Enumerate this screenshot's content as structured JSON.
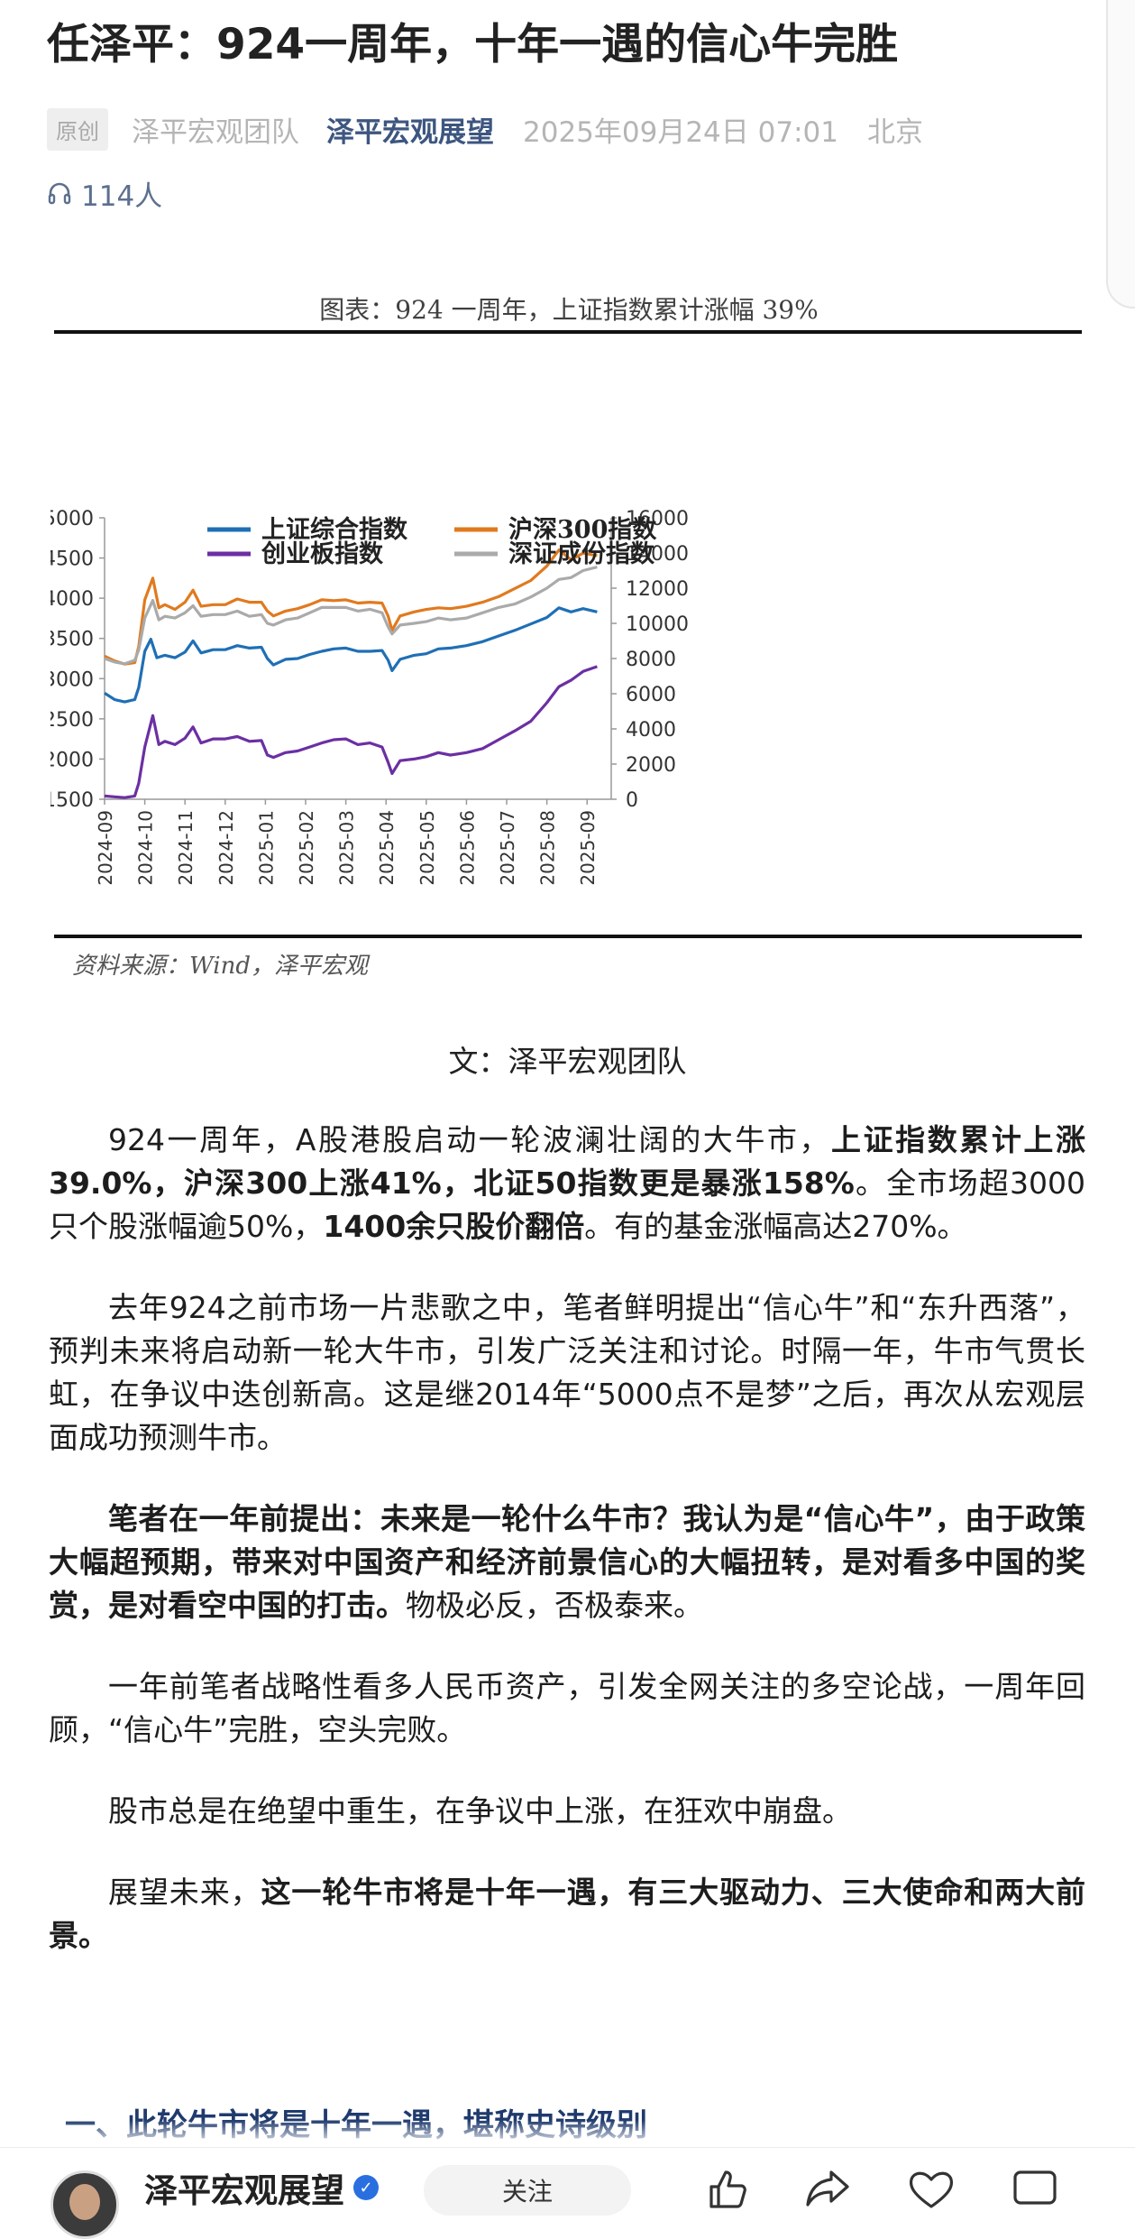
{
  "article": {
    "title": "任泽平：924一周年，十年一遇的信心牛完胜",
    "original_tag": "原创",
    "author_team": "泽平宏观团队",
    "account": "泽平宏观展望",
    "date": "2025年09月24日 07:01",
    "location": "北京",
    "listeners": "114人",
    "byline": "文：泽平宏观团队",
    "section_heading": "一、此轮牛市将是十年一遇，堪称史诗级别"
  },
  "paragraphs": [
    [
      {
        "t": "924一周年，A股港股启动一轮波澜壮阔的大牛市，",
        "b": false
      },
      {
        "t": "上证指数累计上涨39.0%，沪深300上涨41%，北证50指数更是暴涨158%",
        "b": true
      },
      {
        "t": "。全市场超3000只个股涨幅逾50%，",
        "b": false
      },
      {
        "t": "1400余只股价翻倍",
        "b": true
      },
      {
        "t": "。有的基金涨幅高达270%。",
        "b": false
      }
    ],
    [
      {
        "t": "去年924之前市场一片悲歌之中，笔者鲜明提出“信心牛”和“东升西落”，预判未来将启动新一轮大牛市，引发广泛关注和讨论。时隔一年，牛市气贯长虹，在争议中迭创新高。这是继2014年“5000点不是梦”之后，再次从宏观层面成功预测牛市。",
        "b": false
      }
    ],
    [
      {
        "t": "笔者在一年前提出：未来是一轮什么牛市？我认为是“信心牛”，由于政策大幅超预期，带来对中国资产和经济前景信心的大幅扭转，是对看多中国的奖赏，是对看空中国的打击。",
        "b": true
      },
      {
        "t": "物极必反，否极泰来。",
        "b": false
      }
    ],
    [
      {
        "t": "一年前笔者战略性看多人民币资产，引发全网关注的多空论战，一周年回顾，“信心牛”完胜，空头完败。",
        "b": false
      }
    ],
    [
      {
        "t": "股市总是在绝望中重生，在争议中上涨，在狂欢中崩盘。",
        "b": false
      }
    ],
    [
      {
        "t": "展望未来，",
        "b": false
      },
      {
        "t": "这一轮牛市将是十年一遇，有三大驱动力、三大使命和两大前景。",
        "b": true
      }
    ]
  ],
  "bottom_bar": {
    "account_name": "泽平宏观展望",
    "follow_label": "关注"
  },
  "colors": {
    "shanghai": "#1f6fb5",
    "hs300": "#e07a1f",
    "chinext": "#6b2fa3",
    "szse": "#aaaaaa",
    "account_link": "#3d5680",
    "section_heading": "#1f3a6d"
  },
  "chart_data": {
    "type": "line",
    "title": "图表：924 一周年，上证指数累计涨幅 39%",
    "source": "资料来源：Wind，泽平宏观",
    "x_ticks": [
      "2024-09",
      "2024-10",
      "2024-11",
      "2024-12",
      "2025-01",
      "2025-02",
      "2025-03",
      "2025-04",
      "2025-05",
      "2025-06",
      "2025-07",
      "2025-08",
      "2025-09"
    ],
    "x_range": [
      0,
      12.6
    ],
    "ylim_left": [
      1500,
      5000
    ],
    "yticks_left": [
      1500,
      2000,
      2500,
      3000,
      3500,
      4000,
      4500,
      5000
    ],
    "ylim_right": [
      0,
      16000
    ],
    "yticks_right": [
      0,
      2000,
      4000,
      6000,
      8000,
      10000,
      12000,
      14000,
      16000
    ],
    "legend_placement": "top",
    "grid": false,
    "series": [
      {
        "name": "上证综合指数",
        "axis": "left",
        "color": "#1f6fb5",
        "points": [
          [
            0,
            2820
          ],
          [
            0.25,
            2740
          ],
          [
            0.5,
            2710
          ],
          [
            0.75,
            2740
          ],
          [
            0.85,
            2890
          ],
          [
            1.0,
            3340
          ],
          [
            1.15,
            3490
          ],
          [
            1.3,
            3260
          ],
          [
            1.5,
            3290
          ],
          [
            1.75,
            3260
          ],
          [
            2.0,
            3330
          ],
          [
            2.2,
            3470
          ],
          [
            2.4,
            3320
          ],
          [
            2.7,
            3360
          ],
          [
            3.0,
            3360
          ],
          [
            3.3,
            3410
          ],
          [
            3.6,
            3380
          ],
          [
            3.9,
            3390
          ],
          [
            4.05,
            3250
          ],
          [
            4.2,
            3170
          ],
          [
            4.5,
            3240
          ],
          [
            4.8,
            3250
          ],
          [
            5.1,
            3300
          ],
          [
            5.4,
            3340
          ],
          [
            5.7,
            3370
          ],
          [
            6.0,
            3380
          ],
          [
            6.3,
            3340
          ],
          [
            6.6,
            3340
          ],
          [
            6.9,
            3350
          ],
          [
            7.05,
            3230
          ],
          [
            7.15,
            3100
          ],
          [
            7.35,
            3240
          ],
          [
            7.7,
            3290
          ],
          [
            8.0,
            3310
          ],
          [
            8.3,
            3370
          ],
          [
            8.6,
            3380
          ],
          [
            9.0,
            3410
          ],
          [
            9.4,
            3460
          ],
          [
            9.8,
            3530
          ],
          [
            10.2,
            3600
          ],
          [
            10.6,
            3680
          ],
          [
            11.0,
            3760
          ],
          [
            11.3,
            3880
          ],
          [
            11.6,
            3830
          ],
          [
            11.9,
            3870
          ],
          [
            12.25,
            3830
          ]
        ]
      },
      {
        "name": "沪深300指数",
        "axis": "left",
        "color": "#e07a1f",
        "points": [
          [
            0,
            3280
          ],
          [
            0.25,
            3220
          ],
          [
            0.5,
            3180
          ],
          [
            0.75,
            3200
          ],
          [
            0.85,
            3400
          ],
          [
            1.0,
            3980
          ],
          [
            1.2,
            4250
          ],
          [
            1.35,
            3880
          ],
          [
            1.5,
            3920
          ],
          [
            1.75,
            3860
          ],
          [
            2.0,
            3950
          ],
          [
            2.2,
            4100
          ],
          [
            2.4,
            3900
          ],
          [
            2.7,
            3920
          ],
          [
            3.0,
            3920
          ],
          [
            3.3,
            3990
          ],
          [
            3.6,
            3950
          ],
          [
            3.9,
            3950
          ],
          [
            4.05,
            3840
          ],
          [
            4.2,
            3780
          ],
          [
            4.5,
            3840
          ],
          [
            4.8,
            3870
          ],
          [
            5.1,
            3920
          ],
          [
            5.4,
            3980
          ],
          [
            5.7,
            3970
          ],
          [
            6.0,
            3980
          ],
          [
            6.3,
            3940
          ],
          [
            6.6,
            3950
          ],
          [
            6.9,
            3940
          ],
          [
            7.05,
            3780
          ],
          [
            7.15,
            3600
          ],
          [
            7.35,
            3780
          ],
          [
            7.7,
            3830
          ],
          [
            8.0,
            3860
          ],
          [
            8.3,
            3880
          ],
          [
            8.6,
            3870
          ],
          [
            9.0,
            3900
          ],
          [
            9.4,
            3950
          ],
          [
            9.8,
            4020
          ],
          [
            10.2,
            4120
          ],
          [
            10.6,
            4220
          ],
          [
            11.0,
            4400
          ],
          [
            11.3,
            4600
          ],
          [
            11.6,
            4480
          ],
          [
            11.9,
            4560
          ],
          [
            12.25,
            4530
          ]
        ]
      },
      {
        "name": "创业板指数",
        "axis": "left",
        "color": "#6b2fa3",
        "points": [
          [
            0,
            1540
          ],
          [
            0.25,
            1530
          ],
          [
            0.5,
            1520
          ],
          [
            0.75,
            1540
          ],
          [
            0.85,
            1700
          ],
          [
            1.0,
            2150
          ],
          [
            1.2,
            2540
          ],
          [
            1.35,
            2180
          ],
          [
            1.5,
            2220
          ],
          [
            1.75,
            2180
          ],
          [
            2.0,
            2260
          ],
          [
            2.2,
            2400
          ],
          [
            2.4,
            2200
          ],
          [
            2.7,
            2250
          ],
          [
            3.0,
            2250
          ],
          [
            3.3,
            2280
          ],
          [
            3.6,
            2220
          ],
          [
            3.9,
            2230
          ],
          [
            4.05,
            2050
          ],
          [
            4.2,
            2020
          ],
          [
            4.5,
            2080
          ],
          [
            4.8,
            2100
          ],
          [
            5.1,
            2150
          ],
          [
            5.4,
            2200
          ],
          [
            5.7,
            2240
          ],
          [
            6.0,
            2250
          ],
          [
            6.3,
            2180
          ],
          [
            6.6,
            2200
          ],
          [
            6.9,
            2150
          ],
          [
            7.05,
            1960
          ],
          [
            7.15,
            1820
          ],
          [
            7.35,
            1980
          ],
          [
            7.7,
            2000
          ],
          [
            8.0,
            2030
          ],
          [
            8.3,
            2080
          ],
          [
            8.6,
            2050
          ],
          [
            9.0,
            2080
          ],
          [
            9.4,
            2130
          ],
          [
            9.8,
            2240
          ],
          [
            10.2,
            2350
          ],
          [
            10.6,
            2470
          ],
          [
            11.0,
            2700
          ],
          [
            11.3,
            2900
          ],
          [
            11.6,
            2980
          ],
          [
            11.9,
            3090
          ],
          [
            12.25,
            3150
          ]
        ]
      },
      {
        "name": "深证成份指数",
        "axis": "right",
        "color": "#aaaaaa",
        "points": [
          [
            0,
            8000
          ],
          [
            0.25,
            7800
          ],
          [
            0.5,
            7700
          ],
          [
            0.75,
            7900
          ],
          [
            0.85,
            8500
          ],
          [
            1.0,
            10300
          ],
          [
            1.2,
            11300
          ],
          [
            1.35,
            10200
          ],
          [
            1.5,
            10400
          ],
          [
            1.75,
            10300
          ],
          [
            2.0,
            10600
          ],
          [
            2.2,
            11000
          ],
          [
            2.4,
            10400
          ],
          [
            2.7,
            10500
          ],
          [
            3.0,
            10500
          ],
          [
            3.3,
            10700
          ],
          [
            3.6,
            10400
          ],
          [
            3.9,
            10500
          ],
          [
            4.05,
            10000
          ],
          [
            4.2,
            9900
          ],
          [
            4.5,
            10200
          ],
          [
            4.8,
            10300
          ],
          [
            5.1,
            10600
          ],
          [
            5.4,
            10900
          ],
          [
            5.7,
            10900
          ],
          [
            6.0,
            10900
          ],
          [
            6.3,
            10700
          ],
          [
            6.6,
            10800
          ],
          [
            6.9,
            10600
          ],
          [
            7.05,
            9800
          ],
          [
            7.15,
            9400
          ],
          [
            7.35,
            9900
          ],
          [
            7.7,
            10000
          ],
          [
            8.0,
            10100
          ],
          [
            8.3,
            10300
          ],
          [
            8.6,
            10200
          ],
          [
            9.0,
            10300
          ],
          [
            9.4,
            10600
          ],
          [
            9.8,
            10900
          ],
          [
            10.2,
            11100
          ],
          [
            10.6,
            11500
          ],
          [
            11.0,
            12000
          ],
          [
            11.3,
            12500
          ],
          [
            11.6,
            12600
          ],
          [
            11.9,
            13000
          ],
          [
            12.25,
            13200
          ]
        ]
      }
    ]
  }
}
